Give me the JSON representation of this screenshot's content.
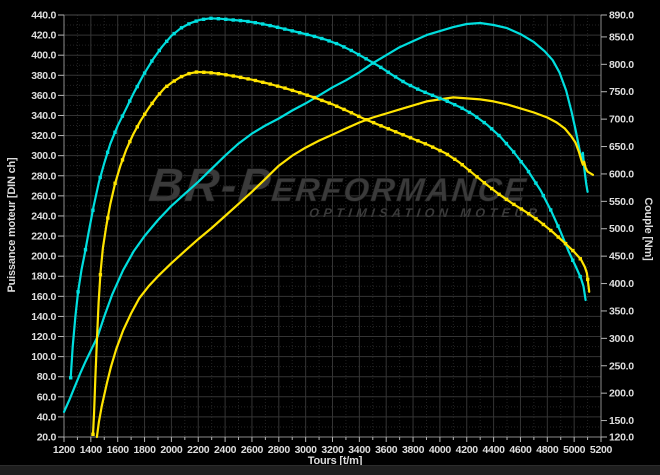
{
  "watermark": {
    "title": "BR-Performance",
    "subtitle": "OPTIMISATION MOTEUR"
  },
  "chart_data": {
    "type": "line",
    "title": "",
    "xlabel": "Tours [t/m]",
    "ylabel_left": "Puissance moteur [DIN ch]",
    "ylabel_right": "Couple [Nm]",
    "legend": "none",
    "grid": "major solid + minor dotted, dark gray on black",
    "x_axis": {
      "min": 1200,
      "max": 5200,
      "ticks": [
        1200,
        1400,
        1600,
        1800,
        2000,
        2200,
        2400,
        2600,
        2800,
        3000,
        3200,
        3400,
        3600,
        3800,
        4000,
        4200,
        4400,
        4600,
        4800,
        5000,
        5200
      ]
    },
    "y_left": {
      "min": 20,
      "max": 440,
      "ticks": [
        440,
        420,
        400,
        380,
        360,
        340,
        320,
        300,
        280,
        260,
        240,
        220,
        200,
        180,
        160,
        140,
        120,
        100,
        80,
        60,
        40,
        20
      ]
    },
    "y_right": {
      "min": 120,
      "max": 890,
      "ticks": [
        890,
        850,
        800,
        750,
        700,
        650,
        600,
        550,
        500,
        450,
        400,
        350,
        300,
        250,
        200,
        150,
        120
      ]
    },
    "colors": {
      "optimise": "#00dede",
      "origine": "#ffe400",
      "background": "#000000",
      "grid_major": "#343434",
      "grid_minor": "#232323",
      "axis": "#8a8a8a",
      "tick_text": "#dedede",
      "watermark": "#3a3a3a"
    },
    "series": [
      {
        "id": "puissance-optimisee",
        "unit": "DIN ch",
        "axis": "left",
        "color": "#00dede",
        "markers": false,
        "peak": {
          "rpm": 4300,
          "value": 432
        },
        "points": [
          [
            1200,
            45
          ],
          [
            1240,
            57
          ],
          [
            1280,
            70
          ],
          [
            1320,
            83
          ],
          [
            1360,
            95
          ],
          [
            1400,
            106
          ],
          [
            1450,
            120
          ],
          [
            1500,
            140
          ],
          [
            1560,
            162
          ],
          [
            1640,
            186
          ],
          [
            1720,
            205
          ],
          [
            1800,
            220
          ],
          [
            1900,
            236
          ],
          [
            2000,
            250
          ],
          [
            2100,
            262
          ],
          [
            2200,
            274
          ],
          [
            2300,
            287
          ],
          [
            2400,
            300
          ],
          [
            2500,
            312
          ],
          [
            2600,
            322
          ],
          [
            2700,
            330
          ],
          [
            2800,
            337
          ],
          [
            2900,
            345
          ],
          [
            3000,
            352
          ],
          [
            3100,
            360
          ],
          [
            3200,
            368
          ],
          [
            3300,
            375
          ],
          [
            3400,
            383
          ],
          [
            3500,
            392
          ],
          [
            3600,
            400
          ],
          [
            3700,
            408
          ],
          [
            3800,
            414
          ],
          [
            3900,
            420
          ],
          [
            4000,
            424
          ],
          [
            4100,
            428
          ],
          [
            4200,
            431
          ],
          [
            4300,
            432
          ],
          [
            4400,
            430
          ],
          [
            4500,
            427
          ],
          [
            4600,
            421
          ],
          [
            4700,
            413
          ],
          [
            4780,
            404
          ],
          [
            4840,
            395
          ],
          [
            4890,
            383
          ],
          [
            4940,
            365
          ],
          [
            4980,
            344
          ],
          [
            5010,
            326
          ],
          [
            5040,
            306
          ],
          [
            5055,
            297
          ],
          [
            5065,
            303
          ],
          [
            5075,
            288
          ],
          [
            5090,
            272
          ],
          [
            5100,
            264
          ]
        ]
      },
      {
        "id": "puissance-origine",
        "unit": "DIN ch",
        "axis": "left",
        "color": "#ffe400",
        "markers": false,
        "peak": {
          "rpm": 4100,
          "value": 358
        },
        "points": [
          [
            1445,
            20
          ],
          [
            1460,
            35
          ],
          [
            1480,
            50
          ],
          [
            1500,
            62
          ],
          [
            1520,
            74
          ],
          [
            1550,
            90
          ],
          [
            1590,
            108
          ],
          [
            1640,
            126
          ],
          [
            1700,
            143
          ],
          [
            1760,
            158
          ],
          [
            1830,
            170
          ],
          [
            1900,
            180
          ],
          [
            2000,
            193
          ],
          [
            2100,
            205
          ],
          [
            2200,
            217
          ],
          [
            2300,
            228
          ],
          [
            2400,
            240
          ],
          [
            2500,
            252
          ],
          [
            2600,
            264
          ],
          [
            2700,
            277
          ],
          [
            2800,
            290
          ],
          [
            2900,
            300
          ],
          [
            3000,
            308
          ],
          [
            3100,
            315
          ],
          [
            3200,
            321
          ],
          [
            3300,
            327
          ],
          [
            3400,
            333
          ],
          [
            3500,
            338
          ],
          [
            3600,
            342
          ],
          [
            3700,
            346
          ],
          [
            3800,
            350
          ],
          [
            3900,
            354
          ],
          [
            4000,
            356
          ],
          [
            4100,
            358
          ],
          [
            4200,
            357
          ],
          [
            4300,
            356
          ],
          [
            4400,
            354
          ],
          [
            4500,
            351
          ],
          [
            4600,
            347
          ],
          [
            4700,
            343
          ],
          [
            4800,
            338
          ],
          [
            4870,
            333
          ],
          [
            4930,
            327
          ],
          [
            4980,
            319
          ],
          [
            5010,
            313
          ],
          [
            5035,
            304
          ],
          [
            5055,
            295
          ],
          [
            5065,
            291
          ],
          [
            5075,
            294
          ],
          [
            5085,
            288
          ],
          [
            5100,
            284
          ],
          [
            5140,
            281
          ]
        ]
      },
      {
        "id": "couple-optimise",
        "unit": "Nm",
        "axis": "right",
        "color": "#00dede",
        "markers": true,
        "peak": {
          "rpm": 2300,
          "value": 884
        },
        "points": [
          [
            1250,
            228
          ],
          [
            1265,
            285
          ],
          [
            1285,
            340
          ],
          [
            1305,
            385
          ],
          [
            1330,
            425
          ],
          [
            1355,
            455
          ],
          [
            1385,
            495
          ],
          [
            1420,
            540
          ],
          [
            1460,
            585
          ],
          [
            1500,
            620
          ],
          [
            1545,
            655
          ],
          [
            1600,
            688
          ],
          [
            1660,
            718
          ],
          [
            1720,
            748
          ],
          [
            1790,
            780
          ],
          [
            1860,
            808
          ],
          [
            1930,
            832
          ],
          [
            2000,
            852
          ],
          [
            2070,
            866
          ],
          [
            2140,
            875
          ],
          [
            2210,
            881
          ],
          [
            2290,
            884
          ],
          [
            2370,
            883
          ],
          [
            2450,
            881
          ],
          [
            2550,
            879
          ],
          [
            2650,
            875
          ],
          [
            2750,
            870
          ],
          [
            2850,
            864
          ],
          [
            2950,
            858
          ],
          [
            3050,
            852
          ],
          [
            3150,
            845
          ],
          [
            3250,
            836
          ],
          [
            3350,
            824
          ],
          [
            3450,
            810
          ],
          [
            3550,
            796
          ],
          [
            3650,
            780
          ],
          [
            3750,
            765
          ],
          [
            3850,
            753
          ],
          [
            3950,
            743
          ],
          [
            4050,
            733
          ],
          [
            4150,
            722
          ],
          [
            4250,
            708
          ],
          [
            4350,
            690
          ],
          [
            4450,
            668
          ],
          [
            4550,
            640
          ],
          [
            4650,
            608
          ],
          [
            4750,
            570
          ],
          [
            4830,
            532
          ],
          [
            4900,
            494
          ],
          [
            4960,
            458
          ],
          [
            5010,
            432
          ],
          [
            5050,
            410
          ],
          [
            5070,
            395
          ],
          [
            5085,
            370
          ]
        ]
      },
      {
        "id": "couple-origine",
        "unit": "Nm",
        "axis": "right",
        "color": "#ffe400",
        "markers": true,
        "peak": {
          "rpm": 2190,
          "value": 786
        },
        "points": [
          [
            1416,
            125
          ],
          [
            1424,
            165
          ],
          [
            1434,
            230
          ],
          [
            1446,
            300
          ],
          [
            1458,
            365
          ],
          [
            1472,
            420
          ],
          [
            1490,
            465
          ],
          [
            1515,
            505
          ],
          [
            1545,
            545
          ],
          [
            1580,
            582
          ],
          [
            1620,
            615
          ],
          [
            1665,
            645
          ],
          [
            1715,
            672
          ],
          [
            1770,
            697
          ],
          [
            1830,
            720
          ],
          [
            1890,
            740
          ],
          [
            1950,
            757
          ],
          [
            2010,
            768
          ],
          [
            2070,
            777
          ],
          [
            2130,
            783
          ],
          [
            2190,
            786
          ],
          [
            2280,
            785
          ],
          [
            2380,
            782
          ],
          [
            2480,
            778
          ],
          [
            2600,
            772
          ],
          [
            2720,
            765
          ],
          [
            2840,
            757
          ],
          [
            2960,
            748
          ],
          [
            3080,
            738
          ],
          [
            3200,
            727
          ],
          [
            3320,
            714
          ],
          [
            3440,
            700
          ],
          [
            3560,
            688
          ],
          [
            3680,
            676
          ],
          [
            3800,
            664
          ],
          [
            3920,
            652
          ],
          [
            4040,
            638
          ],
          [
            4140,
            622
          ],
          [
            4240,
            602
          ],
          [
            4340,
            582
          ],
          [
            4440,
            563
          ],
          [
            4540,
            546
          ],
          [
            4640,
            531
          ],
          [
            4740,
            514
          ],
          [
            4840,
            494
          ],
          [
            4930,
            474
          ],
          [
            5000,
            458
          ],
          [
            5050,
            444
          ],
          [
            5080,
            430
          ],
          [
            5095,
            419
          ],
          [
            5105,
            400
          ],
          [
            5112,
            385
          ]
        ]
      }
    ]
  }
}
